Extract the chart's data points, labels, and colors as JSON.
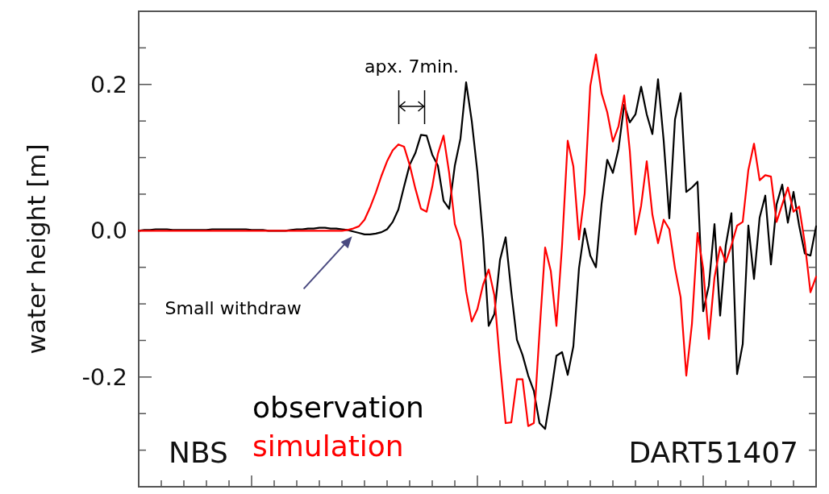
{
  "chart_data": {
    "type": "line",
    "ylabel": "water height [m]",
    "categories": [
      null,
      null,
      null,
      null,
      null,
      null,
      null,
      null,
      null,
      null,
      null,
      null,
      null,
      null,
      null,
      null,
      null,
      null,
      null,
      null,
      null,
      null,
      null,
      null,
      null,
      null,
      null,
      null,
      null,
      null,
      null,
      null,
      null,
      null,
      null,
      null,
      null,
      null,
      null,
      null,
      null,
      null,
      null,
      null,
      null,
      null,
      null,
      null,
      null,
      null,
      null,
      null,
      null,
      null,
      null,
      null,
      null,
      null,
      null,
      null,
      null,
      null,
      null,
      null,
      null,
      null,
      null,
      null,
      null,
      null,
      null,
      null,
      null,
      null,
      null,
      null,
      null,
      null,
      null,
      null,
      null,
      null,
      null,
      null,
      null,
      null,
      null,
      null,
      null,
      null,
      null,
      null,
      null,
      null,
      null,
      null,
      null,
      null,
      null,
      null,
      null,
      null,
      null,
      null,
      null,
      null,
      null,
      null,
      null,
      null,
      null,
      null,
      null,
      null,
      null,
      null,
      null,
      null,
      null,
      null,
      null
    ],
    "ylim": [
      -0.35,
      0.3
    ],
    "yticks": [
      {
        "value": -0.3,
        "label": null
      },
      {
        "value": -0.25,
        "label": null
      },
      {
        "value": -0.2,
        "label": "-0.2"
      },
      {
        "value": -0.15,
        "label": null
      },
      {
        "value": -0.1,
        "label": null
      },
      {
        "value": -0.05,
        "label": null
      },
      {
        "value": 0,
        "label": "0.0"
      },
      {
        "value": 0.05,
        "label": null
      },
      {
        "value": 0.1,
        "label": null
      },
      {
        "value": 0.15,
        "label": null
      },
      {
        "value": 0.2,
        "label": "0.2"
      },
      {
        "value": 0.25,
        "label": null
      },
      {
        "value": 0.3,
        "label": null
      }
    ],
    "tick_labels": "y",
    "grid": false,
    "marker": "none",
    "line_style": "solid",
    "series": [
      {
        "name": "observation",
        "color": "#000000",
        "values": [
          0,
          0.001,
          0.001,
          0.002,
          0.002,
          0.002,
          0.001,
          0.001,
          0.001,
          0.001,
          0.001,
          0.001,
          0.001,
          0.002,
          0.002,
          0.002,
          0.002,
          0.002,
          0.002,
          0.002,
          0.001,
          0.001,
          0.001,
          0,
          0,
          0,
          0,
          0.001,
          0.002,
          0.002,
          0.003,
          0.003,
          0.004,
          0.004,
          0.003,
          0.003,
          0.002,
          0.001,
          -0.001,
          -0.003,
          -0.005,
          -0.005,
          -0.004,
          -0.002,
          0.002,
          0.012,
          0.029,
          0.06,
          0.09,
          0.106,
          0.131,
          0.13,
          0.104,
          0.089,
          0.041,
          0.03,
          0.089,
          0.126,
          0.203,
          0.15,
          0.08,
          -0.01,
          -0.13,
          -0.114,
          -0.04,
          -0.009,
          -0.083,
          -0.149,
          -0.17,
          -0.198,
          -0.219,
          -0.263,
          -0.271,
          -0.224,
          -0.171,
          -0.166,
          -0.197,
          -0.158,
          -0.051,
          0.003,
          -0.034,
          -0.05,
          0.037,
          0.097,
          0.079,
          0.112,
          0.172,
          0.148,
          0.159,
          0.197,
          0.159,
          0.132,
          0.207,
          0.123,
          0.017,
          0.152,
          0.188,
          0.053,
          0.059,
          0.067,
          -0.11,
          -0.075,
          0.009,
          -0.116,
          -0.02,
          0.024,
          -0.196,
          -0.155,
          0.007,
          -0.066,
          0.018,
          0.048,
          -0.046,
          0.036,
          0.063,
          0.011,
          0.053,
          0.007,
          -0.031,
          -0.034,
          0.006
        ]
      },
      {
        "name": "simulation",
        "color": "#ff0000",
        "values": [
          0,
          0,
          0,
          0,
          0,
          0,
          0,
          0,
          0,
          0,
          0,
          0,
          0,
          0,
          0,
          0,
          0,
          0,
          0,
          0,
          0,
          0,
          0,
          0,
          0,
          0,
          0,
          0,
          0,
          0,
          0,
          0,
          0,
          0,
          0,
          0,
          0,
          0.001,
          0.003,
          0.006,
          0.015,
          0.032,
          0.052,
          0.075,
          0.095,
          0.11,
          0.118,
          0.115,
          0.09,
          0.058,
          0.03,
          0.026,
          0.06,
          0.105,
          0.13,
          0.079,
          0.009,
          -0.014,
          -0.083,
          -0.124,
          -0.107,
          -0.074,
          -0.053,
          -0.088,
          -0.181,
          -0.263,
          -0.262,
          -0.203,
          -0.203,
          -0.267,
          -0.263,
          -0.139,
          -0.023,
          -0.055,
          -0.13,
          -0.02,
          0.123,
          0.088,
          -0.012,
          0.051,
          0.198,
          0.241,
          0.188,
          0.162,
          0.122,
          0.143,
          0.185,
          0.109,
          -0.005,
          0.034,
          0.095,
          0.022,
          -0.017,
          0.015,
          0.002,
          -0.051,
          -0.091,
          -0.198,
          -0.128,
          -0.003,
          -0.052,
          -0.148,
          -0.064,
          -0.022,
          -0.043,
          -0.02,
          0.007,
          0.012,
          0.083,
          0.119,
          0.069,
          0.076,
          0.074,
          0.012,
          0.036,
          0.059,
          0.026,
          0.033,
          -0.017,
          -0.084,
          -0.063
        ]
      }
    ],
    "annotations": [
      "apx. 7min.",
      "Small withdraw",
      "NBS",
      "DART51407"
    ]
  }
}
